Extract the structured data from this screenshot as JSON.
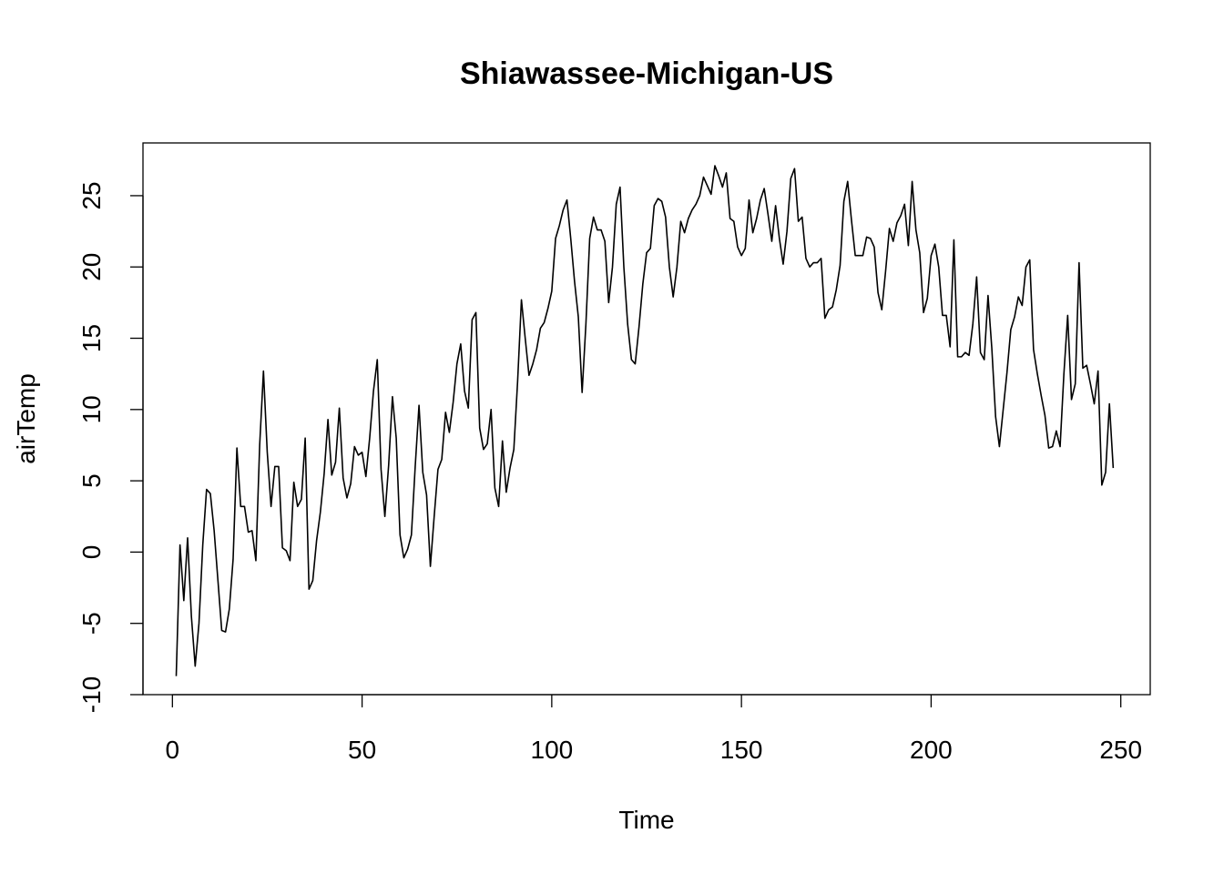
{
  "chart_data": {
    "type": "line",
    "title": "Shiawassee-Michigan-US",
    "xlabel": "Time",
    "ylabel": "airTemp",
    "xlim": [
      -7.76,
      257.76
    ],
    "ylim": [
      -10.0,
      28.7
    ],
    "x_ticks": [
      0,
      50,
      100,
      150,
      200,
      250
    ],
    "x_tick_labels": [
      "0",
      "50",
      "100",
      "150",
      "200",
      "250"
    ],
    "y_ticks": [
      -10,
      -5,
      0,
      5,
      10,
      15,
      20,
      25
    ],
    "y_tick_labels": [
      "-10",
      "-5",
      "0",
      "5",
      "10",
      "15",
      "20",
      "25"
    ],
    "grid": false,
    "legend": "none",
    "line_color": "#000000",
    "series": [
      {
        "x_start": 1,
        "x_step": 1,
        "values": [
          -8.7,
          0.5,
          -3.4,
          1.0,
          -4.5,
          -8.0,
          -5.0,
          0.5,
          4.4,
          4.1,
          1.5,
          -2.0,
          -5.5,
          -5.6,
          -4.0,
          -0.5,
          7.3,
          3.2,
          3.2,
          1.4,
          1.5,
          -0.6,
          7.5,
          12.7,
          7.0,
          3.2,
          6.0,
          6.0,
          0.3,
          0.1,
          -0.6,
          4.9,
          3.2,
          3.7,
          8.0,
          -2.6,
          -2.0,
          0.8,
          2.8,
          5.5,
          9.3,
          5.4,
          6.3,
          10.1,
          5.2,
          3.8,
          4.8,
          7.4,
          6.8,
          7.0,
          5.3,
          8.0,
          11.3,
          13.5,
          5.8,
          2.5,
          6.1,
          10.9,
          8.0,
          1.2,
          -0.4,
          0.2,
          1.2,
          6.0,
          10.3,
          5.6,
          4.0,
          -1.0,
          2.5,
          5.8,
          6.5,
          9.8,
          8.4,
          10.5,
          13.2,
          14.6,
          11.3,
          10.1,
          16.3,
          16.8,
          8.7,
          7.2,
          7.6,
          10.0,
          4.5,
          3.2,
          7.8,
          4.2,
          5.9,
          7.2,
          12.0,
          17.7,
          15.0,
          12.4,
          13.2,
          14.2,
          15.7,
          16.1,
          17.1,
          18.3,
          22.0,
          22.9,
          24.0,
          24.7,
          22.0,
          19.0,
          16.5,
          11.2,
          16.0,
          22.0,
          23.5,
          22.6,
          22.6,
          21.8,
          17.5,
          20.0,
          24.4,
          25.6,
          20.0,
          16.0,
          13.5,
          13.2,
          15.8,
          18.8,
          21.0,
          21.3,
          24.3,
          24.8,
          24.6,
          23.5,
          20.0,
          17.9,
          20.0,
          23.2,
          22.4,
          23.4,
          24.0,
          24.4,
          25.0,
          26.3,
          25.7,
          25.1,
          27.1,
          26.4,
          25.6,
          26.6,
          23.4,
          23.2,
          21.4,
          20.8,
          21.3,
          24.7,
          22.4,
          23.4,
          24.7,
          25.5,
          23.7,
          21.8,
          24.3,
          22.0,
          20.2,
          22.5,
          26.2,
          26.9,
          23.2,
          23.5,
          20.6,
          20.0,
          20.3,
          20.3,
          20.6,
          16.4,
          17.0,
          17.2,
          18.4,
          20.1,
          24.6,
          26.0,
          23.3,
          20.8,
          20.8,
          20.8,
          22.1,
          22.0,
          21.4,
          18.2,
          17.0,
          19.7,
          22.7,
          21.8,
          23.1,
          23.6,
          24.4,
          21.5,
          26.0,
          22.6,
          21.0,
          16.8,
          17.8,
          20.8,
          21.6,
          20.0,
          16.6,
          16.6,
          14.4,
          21.9,
          13.7,
          13.7,
          14.0,
          13.8,
          16.0,
          19.3,
          14.0,
          13.5,
          18.0,
          14.3,
          9.5,
          7.4,
          10.0,
          12.6,
          15.6,
          16.5,
          17.9,
          17.3,
          20.0,
          20.5,
          14.2,
          12.5,
          11.0,
          9.6,
          7.3,
          7.4,
          8.5,
          7.4,
          12.5,
          16.6,
          10.7,
          11.8,
          20.3,
          12.9,
          13.1,
          11.8,
          10.4,
          12.7,
          4.7,
          5.6,
          10.4,
          5.9
        ]
      }
    ]
  }
}
